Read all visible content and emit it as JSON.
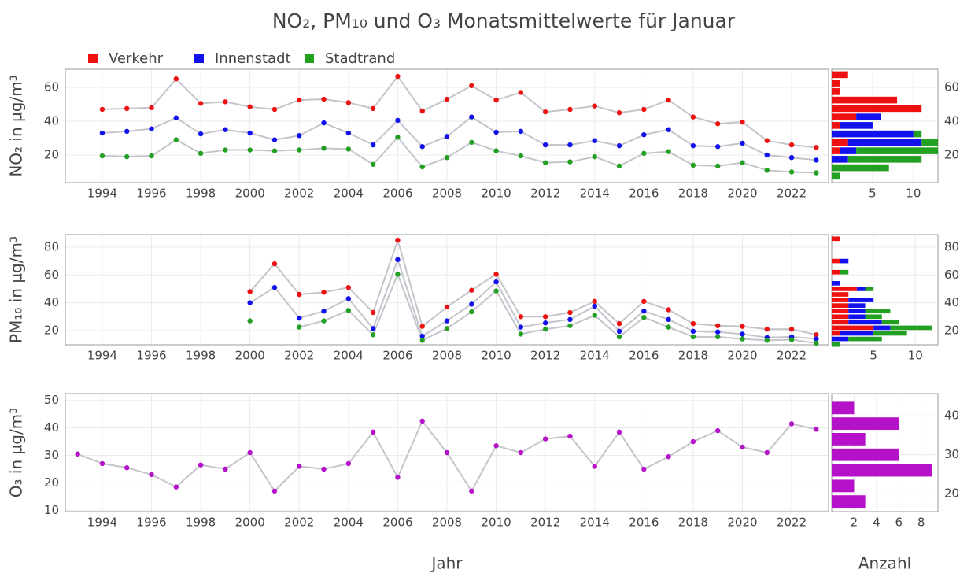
{
  "title": "NO₂, PM₁₀ und O₃ Monatsmittelwerte für Januar",
  "chart_data": [
    {
      "type": "line",
      "ylabel": "NO₂ in µg/m³",
      "x": [
        1994,
        1995,
        1996,
        1997,
        1998,
        1999,
        2000,
        2001,
        2002,
        2003,
        2004,
        2005,
        2006,
        2007,
        2008,
        2009,
        2010,
        2011,
        2012,
        2013,
        2014,
        2015,
        2016,
        2017,
        2018,
        2019,
        2020,
        2021,
        2022,
        2023
      ],
      "series": [
        {
          "name": "Verkehr",
          "color": "#ee1111",
          "values": [
            47,
            47.5,
            48,
            65,
            50.5,
            51.5,
            48.5,
            47,
            52.5,
            53,
            51,
            47.5,
            66.5,
            46,
            53,
            61,
            52.5,
            57,
            45.5,
            47,
            49,
            45,
            47,
            52.5,
            42.5,
            38.5,
            39.5,
            28.5,
            26,
            24.5
          ]
        },
        {
          "name": "Innenstadt",
          "color": "#1111ee",
          "values": [
            33,
            34,
            35.5,
            42,
            32.5,
            35,
            33,
            29,
            31.5,
            39,
            33,
            26,
            40.5,
            25,
            31,
            42.5,
            33.5,
            34,
            26,
            26,
            28.5,
            25.5,
            32,
            35,
            25.5,
            25,
            27,
            20,
            18.5,
            17
          ]
        },
        {
          "name": "Stadtrand",
          "color": "#22a022",
          "values": [
            19.5,
            19,
            19.5,
            29,
            21,
            23,
            23,
            22.5,
            23,
            24,
            23.5,
            14.5,
            30.5,
            13,
            18.5,
            27.5,
            22.5,
            19.5,
            15.5,
            16,
            19,
            13.5,
            21,
            22,
            14,
            13.5,
            15.5,
            11,
            10,
            9.5
          ]
        }
      ],
      "xlim": [
        1992.5,
        2023.5
      ],
      "ylim": [
        3.7,
        70.7
      ],
      "xticks": [
        1994,
        1996,
        1998,
        2000,
        2002,
        2004,
        2006,
        2008,
        2010,
        2012,
        2014,
        2016,
        2018,
        2020,
        2022
      ],
      "yticks": [
        20,
        40,
        60
      ],
      "grid": true,
      "legend": "top-left"
    },
    {
      "type": "histogram",
      "orientation": "horizontal",
      "bins": [
        5,
        10,
        15,
        20,
        25,
        30,
        35,
        40,
        45,
        50,
        55,
        60,
        65,
        70
      ],
      "series": [
        {
          "color": "#ee1111",
          "values": [
            0,
            0,
            0,
            1,
            2,
            0,
            1,
            3,
            11,
            8,
            1,
            1,
            2
          ]
        },
        {
          "color": "#1111ee",
          "values": [
            0,
            0,
            2,
            2,
            9,
            10,
            4,
            3,
            0,
            0,
            0,
            0,
            0
          ]
        },
        {
          "color": "#22a022",
          "values": [
            1,
            7,
            9,
            10,
            2,
            1,
            0,
            0,
            0,
            0,
            0,
            0,
            0
          ]
        }
      ],
      "xlim": [
        0,
        13
      ],
      "ylim": [
        3.7,
        70.7
      ],
      "xticks": [
        5,
        10
      ],
      "yticks": [
        20,
        40,
        60
      ],
      "grid": true
    },
    {
      "type": "line",
      "ylabel": "PM₁₀ in µg/m³",
      "x": [
        1994,
        1995,
        1996,
        1997,
        1998,
        1999,
        2000,
        2001,
        2002,
        2003,
        2004,
        2005,
        2006,
        2007,
        2008,
        2009,
        2010,
        2011,
        2012,
        2013,
        2014,
        2015,
        2016,
        2017,
        2018,
        2019,
        2020,
        2021,
        2022,
        2023
      ],
      "series": [
        {
          "color": "#ee1111",
          "values": [
            null,
            null,
            null,
            null,
            null,
            null,
            48,
            68,
            46,
            47.5,
            51,
            33,
            85,
            23,
            37,
            49,
            60.5,
            30,
            30,
            33,
            41,
            25,
            41,
            35,
            25,
            23.5,
            23,
            21,
            21,
            17
          ]
        },
        {
          "color": "#1111ee",
          "values": [
            null,
            null,
            null,
            null,
            null,
            null,
            40,
            51,
            29,
            34,
            43,
            21.5,
            71,
            16,
            27,
            39,
            55,
            22.5,
            25.5,
            28,
            37.5,
            19.5,
            34,
            28,
            19.5,
            19,
            17.5,
            15,
            15.5,
            14
          ]
        },
        {
          "color": "#22a022",
          "values": [
            null,
            null,
            null,
            null,
            null,
            null,
            27,
            null,
            22.5,
            27,
            34.5,
            17,
            60.5,
            13,
            21.5,
            33.5,
            48.5,
            17.5,
            21,
            23.5,
            31,
            15.5,
            29.5,
            22.5,
            15.5,
            15.5,
            14,
            13,
            13.5,
            11
          ]
        }
      ],
      "xlim": [
        1992.5,
        2023.5
      ],
      "ylim": [
        9.8,
        89
      ],
      "xticks": [
        1994,
        1996,
        1998,
        2000,
        2002,
        2004,
        2006,
        2008,
        2010,
        2012,
        2014,
        2016,
        2018,
        2020,
        2022
      ],
      "yticks": [
        20,
        40,
        60,
        80
      ],
      "grid": true
    },
    {
      "type": "histogram",
      "orientation": "horizontal",
      "bins": [
        8,
        12,
        16,
        20,
        24,
        28,
        32,
        36,
        40,
        44,
        48,
        52,
        56,
        60,
        64,
        68,
        72,
        76,
        80,
        84,
        88
      ],
      "series": [
        {
          "color": "#ee1111",
          "values": [
            0,
            0,
            1,
            5,
            2,
            2,
            2,
            2,
            2,
            2,
            3,
            0,
            0,
            1,
            0,
            1,
            0,
            0,
            0,
            1
          ]
        },
        {
          "color": "#1111ee",
          "values": [
            0,
            2,
            4,
            2,
            4,
            2,
            2,
            2,
            3,
            0,
            1,
            1,
            0,
            0,
            0,
            1,
            0,
            0,
            0,
            0
          ]
        },
        {
          "color": "#22a022",
          "values": [
            1,
            4,
            4,
            5,
            2,
            2,
            3,
            0,
            0,
            0,
            1,
            0,
            0,
            1,
            0,
            0,
            0,
            0,
            0,
            0
          ]
        }
      ],
      "xlim": [
        0,
        12.7
      ],
      "ylim": [
        9.8,
        89
      ],
      "xticks": [
        5,
        10
      ],
      "yticks": [
        20,
        40,
        60,
        80
      ],
      "grid": true
    },
    {
      "type": "line",
      "ylabel": "O₃ in µg/m³",
      "xlabel": "Jahr",
      "x": [
        1993,
        1994,
        1995,
        1996,
        1997,
        1998,
        1999,
        2000,
        2001,
        2002,
        2003,
        2004,
        2005,
        2006,
        2007,
        2008,
        2009,
        2010,
        2011,
        2012,
        2013,
        2014,
        2015,
        2016,
        2017,
        2018,
        2019,
        2020,
        2021,
        2022,
        2023
      ],
      "series": [
        {
          "color": "#b511c9",
          "values": [
            30.5,
            27,
            25.5,
            23,
            18.5,
            26.5,
            25,
            31,
            17,
            26,
            25,
            27,
            38.5,
            22,
            42.5,
            31,
            17,
            33.5,
            31,
            36,
            37,
            26,
            38.5,
            25,
            29.5,
            35,
            39,
            33,
            31,
            41.5,
            39.5
          ]
        }
      ],
      "xlim": [
        1992.5,
        2023.5
      ],
      "ylim": [
        9.5,
        52.5
      ],
      "xticks": [
        1994,
        1996,
        1998,
        2000,
        2002,
        2004,
        2006,
        2008,
        2010,
        2012,
        2014,
        2016,
        2018,
        2020,
        2022
      ],
      "yticks": [
        10,
        20,
        30,
        40,
        50
      ],
      "grid": true
    },
    {
      "type": "histogram",
      "orientation": "horizontal",
      "xlabel": "Anzahl",
      "bins": [
        16,
        20,
        24,
        28,
        32,
        36,
        40,
        44
      ],
      "series": [
        {
          "color": "#b511c9",
          "values": [
            3,
            2,
            9,
            6,
            3,
            6,
            2
          ]
        }
      ],
      "xlim": [
        0,
        9.5
      ],
      "ylim": [
        15.4,
        45.7
      ],
      "xticks": [
        2,
        4,
        6,
        8
      ],
      "yticks": [
        20,
        30,
        40
      ],
      "grid": true
    }
  ]
}
